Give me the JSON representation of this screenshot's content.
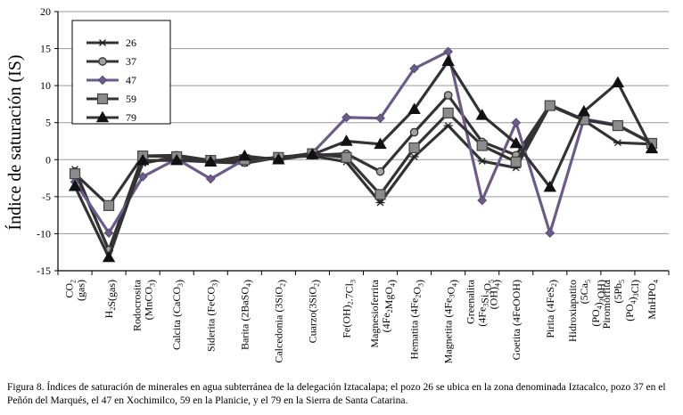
{
  "chart_data": {
    "type": "line",
    "title": "",
    "xlabel": "",
    "ylabel": "Índice de saturación (IS)",
    "ylim": [
      -15,
      20
    ],
    "yticks": [
      -15,
      -10,
      -5,
      0,
      5,
      10,
      15,
      20
    ],
    "grid": "horizontal",
    "legend_position": "top-left",
    "categories": [
      {
        "id": "co2",
        "parts": [
          [
            "CO",
            ""
          ],
          [
            "2",
            "sub"
          ],
          [
            "(gas)",
            ""
          ]
        ]
      },
      {
        "id": "h2s",
        "parts": [
          [
            "H",
            ""
          ],
          [
            "2",
            "sub"
          ],
          [
            "S(gas)",
            ""
          ]
        ]
      },
      {
        "id": "rodocrosita",
        "parts": [
          [
            "Rodocrosita",
            ""
          ],
          [
            "(MnCO",
            ""
          ],
          [
            "3",
            "sub"
          ],
          [
            ")",
            ""
          ]
        ]
      },
      {
        "id": "calcita",
        "parts": [
          [
            "Calcita (CaCO",
            ""
          ],
          [
            "3",
            "sub"
          ],
          [
            ")",
            ""
          ]
        ]
      },
      {
        "id": "siderita",
        "parts": [
          [
            "Siderita (FeCO",
            ""
          ],
          [
            "3",
            "sub"
          ],
          [
            ")",
            ""
          ]
        ]
      },
      {
        "id": "barita",
        "parts": [
          [
            "Barita (2BaSO",
            ""
          ],
          [
            "4",
            "sub"
          ],
          [
            ")",
            ""
          ]
        ]
      },
      {
        "id": "calcedonia",
        "parts": [
          [
            "Calcedonia (3SiO",
            ""
          ],
          [
            "2",
            "sub"
          ],
          [
            ")",
            ""
          ]
        ]
      },
      {
        "id": "cuarzo",
        "parts": [
          [
            "Cuarzo(3SiO",
            ""
          ],
          [
            "2",
            "sub"
          ],
          [
            ")",
            ""
          ]
        ]
      },
      {
        "id": "feoh",
        "parts": [
          [
            "Fe(OH)",
            ""
          ],
          [
            "2",
            "sub"
          ],
          [
            ".7Cl",
            ""
          ],
          [
            "3",
            "sub"
          ]
        ]
      },
      {
        "id": "magnesioferrita",
        "parts": [
          [
            "Magnesioferrita",
            ""
          ],
          [
            "(4Fe",
            ""
          ],
          [
            "2",
            "sub"
          ],
          [
            "MgO",
            ""
          ],
          [
            "4",
            "sub"
          ],
          [
            ")",
            ""
          ]
        ]
      },
      {
        "id": "hematita",
        "parts": [
          [
            "Hematita (4Fe",
            ""
          ],
          [
            "2",
            "sub"
          ],
          [
            "O",
            ""
          ],
          [
            "3",
            "sub"
          ],
          [
            ")",
            ""
          ]
        ]
      },
      {
        "id": "magnetita",
        "parts": [
          [
            "Magnetita (4Fe",
            ""
          ],
          [
            "3",
            "sub"
          ],
          [
            "O",
            ""
          ],
          [
            "4",
            "sub"
          ],
          [
            ")",
            ""
          ]
        ]
      },
      {
        "id": "greenalita",
        "parts": [
          [
            "Greenalita",
            ""
          ],
          [
            "(4Fe",
            ""
          ],
          [
            "3",
            "sub"
          ],
          [
            "Si",
            ""
          ],
          [
            "2",
            "sub"
          ],
          [
            "O",
            ""
          ],
          [
            "5",
            "sub"
          ],
          [
            "(OH)",
            ""
          ],
          [
            "4",
            "sub"
          ],
          [
            ")",
            ""
          ]
        ]
      },
      {
        "id": "goetita",
        "parts": [
          [
            "Goetita (4FeOOH)",
            ""
          ]
        ]
      },
      {
        "id": "pirita",
        "parts": [
          [
            "Pirita (4FeS",
            ""
          ],
          [
            "2",
            "sub"
          ],
          [
            ")",
            ""
          ]
        ]
      },
      {
        "id": "hidroxiapatito",
        "parts": [
          [
            "Hidroxiapatito",
            ""
          ],
          [
            "(5Ca",
            ""
          ],
          [
            "5",
            "sub"
          ],
          [
            "(PO",
            ""
          ],
          [
            "4",
            "sub"
          ],
          [
            ")",
            ""
          ],
          [
            "3",
            "sub"
          ],
          [
            "OH)",
            ""
          ]
        ]
      },
      {
        "id": "piromorfita",
        "parts": [
          [
            "Piromorfita",
            ""
          ],
          [
            "(5Pb",
            ""
          ],
          [
            "5",
            "sub"
          ],
          [
            "(PO",
            ""
          ],
          [
            "4",
            "sub"
          ],
          [
            ")",
            ""
          ],
          [
            "3",
            "sub"
          ],
          [
            "Cl)",
            ""
          ]
        ]
      },
      {
        "id": "mnhpo4",
        "parts": [
          [
            "MnHPO",
            ""
          ],
          [
            "4",
            "sub"
          ]
        ]
      }
    ],
    "series": [
      {
        "name": "26",
        "marker": "asterisk",
        "color": "#333333",
        "values": [
          -1.3,
          -12.3,
          -0.5,
          0.4,
          -0.3,
          -0.5,
          0.3,
          0.5,
          -0.3,
          -5.8,
          0.4,
          4.6,
          -0.2,
          -1.1,
          7.3,
          5.3,
          2.3,
          2.1
        ]
      },
      {
        "name": "37",
        "marker": "circle",
        "color": "#333333",
        "values": [
          -1.6,
          -12.2,
          0.5,
          0.6,
          -0.1,
          -0.4,
          0.4,
          0.6,
          0.8,
          -1.6,
          3.7,
          8.7,
          2.4,
          0.6,
          7.4,
          5.4,
          4.6,
          2.3
        ]
      },
      {
        "name": "47",
        "marker": "diamond",
        "color": "#6b5b8a",
        "values": [
          -3.0,
          -9.9,
          -2.3,
          0.1,
          -2.6,
          0.0,
          0.2,
          0.9,
          5.7,
          5.6,
          12.3,
          14.6,
          -5.5,
          5.0,
          -9.9,
          5.5,
          4.7,
          2.2
        ]
      },
      {
        "name": "59",
        "marker": "square",
        "color": "#333333",
        "values": [
          -1.9,
          -6.2,
          0.5,
          0.4,
          -0.1,
          0.0,
          0.3,
          0.8,
          0.3,
          -4.7,
          1.6,
          6.3,
          1.9,
          -0.3,
          7.3,
          5.4,
          4.6,
          2.2
        ]
      },
      {
        "name": "79",
        "marker": "triangle",
        "color": "#333333",
        "values": [
          -3.6,
          -13.2,
          -0.1,
          -0.1,
          -0.3,
          0.5,
          0.0,
          0.7,
          2.5,
          2.1,
          6.8,
          13.3,
          6.0,
          2.2,
          -3.7,
          6.5,
          10.4,
          1.5
        ]
      }
    ]
  },
  "caption": {
    "text": "Figura 8. Índices de saturación de minerales en agua subterránea de la delegación Iztacalapa; el pozo 26 se ubica en la zona denominada Iztacalco, pozo 37 en el Peñón del Marqués, el 47 en Xochimilco, 59 en la Planicie, y el 79 en la Sierra de Santa Catarina."
  }
}
